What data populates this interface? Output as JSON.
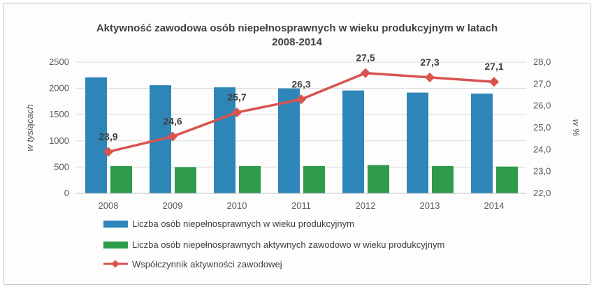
{
  "chart_data": {
    "type": "bar",
    "title_line1": "Aktywność zawodowa osób niepełnosprawnych w wieku produkcyjnym w latach",
    "title_line2": "2008-2014",
    "categories": [
      "2008",
      "2009",
      "2010",
      "2011",
      "2012",
      "2013",
      "2014"
    ],
    "ylabel": "w tysiącach",
    "y2label": "w %",
    "ylim": [
      0,
      2500
    ],
    "y_ticks": [
      "0",
      "500",
      "1000",
      "1500",
      "2000",
      "2500"
    ],
    "y2lim": [
      22.0,
      28.0
    ],
    "y2_ticks": [
      "22,0",
      "23,0",
      "24,0",
      "25,0",
      "26,0",
      "27,0",
      "28,0"
    ],
    "grid": true,
    "legend_position": "bottom",
    "series": [
      {
        "name": "Liczba osób niepełnosprawnych w wieku produkcyjnym",
        "type": "bar",
        "axis": "left",
        "color": "#2E86B8",
        "values": [
          2210,
          2060,
          2020,
          2000,
          1960,
          1920,
          1900
        ]
      },
      {
        "name": "Liczba osób niepełnosprawnych aktywnych zawodowo w wieku produkcyjnym",
        "type": "bar",
        "axis": "left",
        "color": "#2E9B4A",
        "values": [
          520,
          500,
          520,
          520,
          540,
          520,
          510
        ]
      },
      {
        "name": "Współczynnik aktywności zawodowej",
        "type": "line",
        "axis": "right",
        "color": "#D9534F",
        "values": [
          23.9,
          24.6,
          25.7,
          26.3,
          27.5,
          27.3,
          27.1
        ],
        "labels": [
          "23,9",
          "24,6",
          "25,7",
          "26,3",
          "27,5",
          "27,3",
          "27,1"
        ]
      }
    ]
  }
}
